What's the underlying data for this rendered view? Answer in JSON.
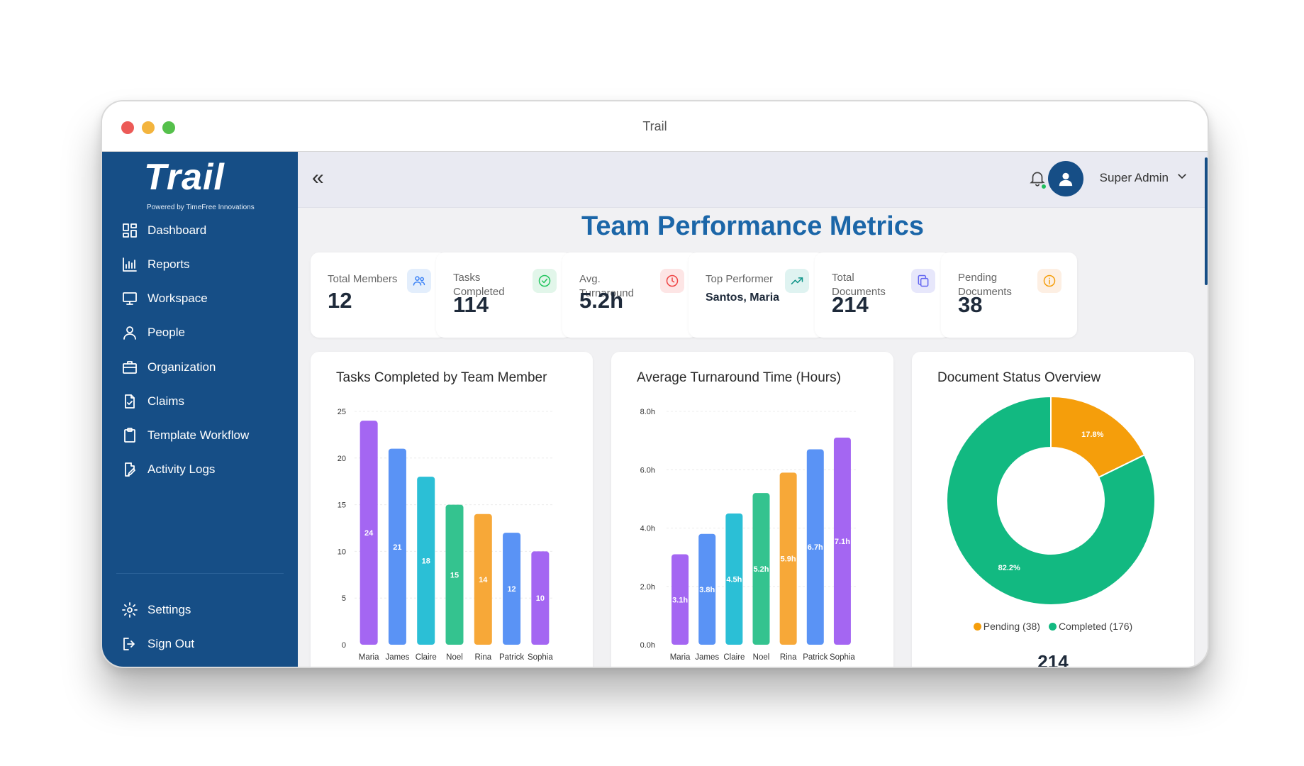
{
  "window": {
    "title": "Trail"
  },
  "sidebar": {
    "logo": "Trail",
    "tagline": "Powered by TimeFree Innovations",
    "items": [
      {
        "label": "Dashboard",
        "icon": "dashboard-icon"
      },
      {
        "label": "Reports",
        "icon": "bar-chart-icon"
      },
      {
        "label": "Workspace",
        "icon": "monitor-icon"
      },
      {
        "label": "People",
        "icon": "user-icon"
      },
      {
        "label": "Organization",
        "icon": "briefcase-icon"
      },
      {
        "label": "Claims",
        "icon": "document-check-icon"
      },
      {
        "label": "Template Workflow",
        "icon": "clipboard-icon"
      },
      {
        "label": "Activity Logs",
        "icon": "file-edit-icon"
      }
    ],
    "bottom_items": [
      {
        "label": "Settings",
        "icon": "gear-icon"
      },
      {
        "label": "Sign Out",
        "icon": "sign-out-icon"
      }
    ]
  },
  "header": {
    "collapse_icon": "«",
    "user_name": "Super Admin"
  },
  "page": {
    "title": "Team Performance Metrics"
  },
  "stats": [
    {
      "label": "Total Members",
      "value": "12",
      "icon": "users-icon",
      "color": "#3b82f6",
      "bg": "#e3eefc"
    },
    {
      "label": "Tasks Completed",
      "value": "114",
      "icon": "check-circle-icon",
      "color": "#22c55e",
      "bg": "#e2f6ea"
    },
    {
      "label": "Avg. Turnaround",
      "value": "5.2h",
      "icon": "clock-icon",
      "color": "#ef4444",
      "bg": "#fde5e5"
    },
    {
      "label": "Top Performer",
      "value": "Santos, Maria",
      "icon": "trending-up-icon",
      "color": "#0d9488",
      "bg": "#dff3f1"
    },
    {
      "label": "Total Documents",
      "value": "214",
      "icon": "copy-icon",
      "color": "#6366f1",
      "bg": "#e7e7fb"
    },
    {
      "label": "Pending Documents",
      "value": "38",
      "icon": "info-icon",
      "color": "#f59e0b",
      "bg": "#fdefe3"
    }
  ],
  "chart_data": [
    {
      "type": "bar",
      "title": "Tasks Completed by Team Member",
      "categories": [
        "Maria",
        "James",
        "Claire",
        "Noel",
        "Rina",
        "Patrick",
        "Sophia"
      ],
      "values": [
        24,
        21,
        18,
        15,
        14,
        12,
        10
      ],
      "value_labels": [
        "24",
        "21",
        "18",
        "15",
        "14",
        "12",
        "10"
      ],
      "colors": [
        "#a466f2",
        "#5a93f5",
        "#2bbfd6",
        "#34c38f",
        "#f7a838",
        "#5a93f5",
        "#a466f2"
      ],
      "ylim": [
        0,
        25
      ],
      "yticks": [
        "0",
        "5",
        "10",
        "15",
        "20",
        "25"
      ],
      "grid": true
    },
    {
      "type": "bar",
      "title": "Average Turnaround Time (Hours)",
      "categories": [
        "Maria",
        "James",
        "Claire",
        "Noel",
        "Rina",
        "Patrick",
        "Sophia"
      ],
      "values": [
        3.1,
        3.8,
        4.5,
        5.2,
        5.9,
        6.7,
        7.1
      ],
      "value_labels": [
        "3.1h",
        "3.8h",
        "4.5h",
        "5.2h",
        "5.9h",
        "6.7h",
        "7.1h"
      ],
      "colors": [
        "#a466f2",
        "#5a93f5",
        "#2bbfd6",
        "#34c38f",
        "#f7a838",
        "#5a93f5",
        "#a466f2"
      ],
      "ylim": [
        0,
        8
      ],
      "yticks": [
        "0.0h",
        "2.0h",
        "4.0h",
        "6.0h",
        "8.0h"
      ],
      "grid": true
    },
    {
      "type": "pie",
      "title": "Document Status Overview",
      "labels": [
        "Pending",
        "Completed"
      ],
      "values": [
        38,
        176
      ],
      "percent_labels": [
        "17.8%",
        "82.2%"
      ],
      "colors": [
        "#f59e0b",
        "#12b981"
      ],
      "legend": [
        "Pending (38)",
        "Completed (176)"
      ],
      "legend_position": "bottom",
      "total": "214"
    }
  ]
}
